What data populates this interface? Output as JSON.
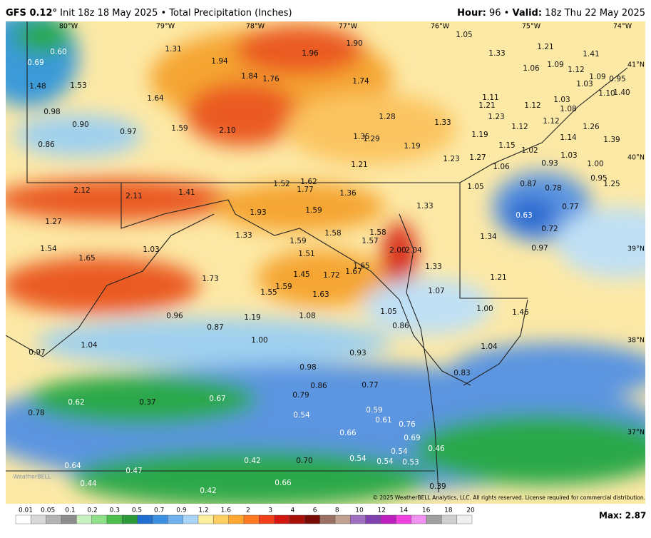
{
  "header": {
    "model": "GFS 0.12°",
    "init": "Init 18z 18 May 2025 • Total Precipitation (Inches)",
    "hour_label": "Hour:",
    "hour": "96 •",
    "valid_label": "Valid:",
    "valid": "18z Thu 22 May 2025"
  },
  "map": {
    "longitudes": [
      "80°W",
      "79°W",
      "78°W",
      "77°W",
      "76°W",
      "75°W",
      "74°W"
    ],
    "latitudes": [
      "41°N",
      "40°N",
      "39°N",
      "38°N",
      "37°N"
    ],
    "labels": [
      "0.60",
      "0.69",
      "1.48",
      "1.53",
      "0.98",
      "0.90",
      "0.97",
      "0.86",
      "1.31",
      "1.94",
      "1.84",
      "1.76",
      "1.96",
      "1.90",
      "1.74",
      "1.64",
      "1.59",
      "2.10",
      "1.28",
      "1.33",
      "1.35",
      "1.29",
      "1.19",
      "1.21",
      "1.23",
      "1.27",
      "1.05",
      "1.33",
      "1.21",
      "1.41",
      "1.06",
      "1.09",
      "1.12",
      "1.09",
      "0.95",
      "1.03",
      "1.10",
      "1.40",
      "1.11",
      "1.21",
      "1.12",
      "1.03",
      "1.08",
      "1.23",
      "1.12",
      "1.12",
      "1.26",
      "1.19",
      "1.15",
      "1.14",
      "1.39",
      "1.02",
      "1.03",
      "1.06",
      "0.93",
      "1.00",
      "0.95",
      "1.25",
      "1.05",
      "0.87",
      "0.78",
      "0.63",
      "0.77",
      "0.72",
      "0.97",
      "1.34",
      "1.21",
      "1.00",
      "1.46",
      "1.04",
      "0.83",
      "2.12",
      "2.11",
      "1.41",
      "1.52",
      "1.62",
      "1.77",
      "1.36",
      "1.33",
      "1.93",
      "1.59",
      "1.27",
      "1.33",
      "1.58",
      "1.58",
      "1.57",
      "1.54",
      "1.03",
      "1.59",
      "1.51",
      "2.00",
      "2.04",
      "1.65",
      "1.45",
      "1.72",
      "1.67",
      "1.65",
      "1.33",
      "1.73",
      "1.59",
      "1.55",
      "1.63",
      "1.07",
      "0.96",
      "1.19",
      "1.08",
      "1.05",
      "0.86",
      "0.87",
      "1.00",
      "0.97",
      "1.04",
      "0.93",
      "0.98",
      "0.86",
      "0.77",
      "0.79",
      "0.67",
      "0.62",
      "0.37",
      "0.78",
      "0.54",
      "0.59",
      "0.61",
      "0.76",
      "0.69",
      "0.66",
      "0.46",
      "0.54",
      "0.42",
      "0.70",
      "0.54",
      "0.54",
      "0.53",
      "0.64",
      "0.47",
      "0.44",
      "0.66",
      "0.42",
      "0.39"
    ],
    "copyright": "© 2025 WeatherBELL Analytics, LLC. All rights reserved. License required for commercial distribution.",
    "watermark": "WeatherBELL"
  },
  "colorbar": {
    "labels": [
      "0.01",
      "0.05",
      "0.1",
      "0.2",
      "0.3",
      "0.5",
      "0.7",
      "0.9",
      "1.2",
      "1.6",
      "2",
      "3",
      "4",
      "6",
      "8",
      "10",
      "12",
      "14",
      "16",
      "18",
      "20"
    ]
  },
  "footer": {
    "max": "Max: 2.87"
  }
}
